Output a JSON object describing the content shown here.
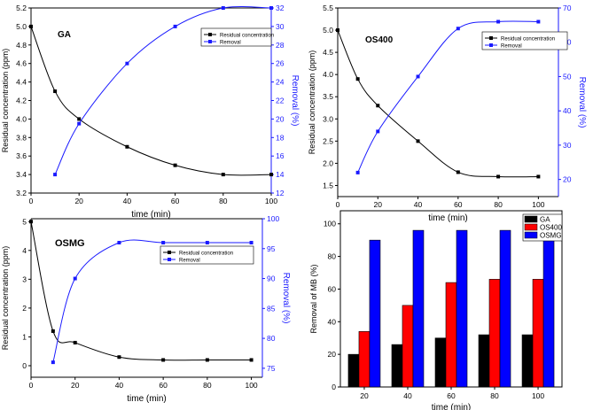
{
  "colors": {
    "residual": "#000000",
    "removal": "#1a1aff",
    "ga_bar": "#000000",
    "os400_bar": "#ff0000",
    "osmg_bar": "#0000ff"
  },
  "chart_data": [
    {
      "type": "line",
      "panel_label": "GA",
      "xlabel": "time (min)",
      "ylabel": "Residual concentration (ppm)",
      "y2label": "Removal (%)",
      "xlim": [
        0,
        100
      ],
      "xticks": [
        0,
        20,
        40,
        60,
        80,
        100
      ],
      "ylim": [
        3.2,
        5.2
      ],
      "yticks": [
        3.2,
        3.4,
        3.6,
        3.8,
        4.0,
        4.2,
        4.4,
        4.6,
        4.8,
        5.0,
        5.2
      ],
      "yticklabels": [
        "3.2",
        "3.4",
        "3.6",
        "3.8",
        "4.0",
        "4.2",
        "4.4",
        "4.6",
        "4.8",
        "5.0",
        "5.2"
      ],
      "y2lim": [
        12,
        32
      ],
      "y2ticks": [
        12,
        14,
        16,
        18,
        20,
        22,
        24,
        26,
        28,
        30,
        32
      ],
      "legend_position": "top-right",
      "series": [
        {
          "name": "Residual concentration",
          "axis": "left",
          "x": [
            0,
            10,
            20,
            40,
            60,
            80,
            100
          ],
          "values": [
            5.0,
            4.3,
            4.0,
            3.7,
            3.5,
            3.4,
            3.4
          ]
        },
        {
          "name": "Removal",
          "axis": "right",
          "x": [
            10,
            20,
            40,
            60,
            80,
            100
          ],
          "values": [
            14,
            19.5,
            26,
            30,
            32,
            32
          ]
        }
      ]
    },
    {
      "type": "line",
      "panel_label": "OS400",
      "xlabel": "time (min)",
      "ylabel": "Residual concentration (ppm)",
      "y2label": "Removal (%)",
      "xlim": [
        0,
        110
      ],
      "xticks": [
        0,
        20,
        40,
        60,
        80,
        100
      ],
      "ylim": [
        1.25,
        5.5
      ],
      "yticks": [
        1.5,
        2.0,
        2.5,
        3.0,
        3.5,
        4.0,
        4.5,
        5.0,
        5.5
      ],
      "yticklabels": [
        "1.5",
        "2.0",
        "2.5",
        "3.0",
        "3.5",
        "4.0",
        "4.5",
        "5.0",
        "5.5"
      ],
      "y2lim": [
        15,
        70
      ],
      "y2ticks": [
        20,
        30,
        40,
        50,
        60,
        70
      ],
      "legend_position": "top-right",
      "series": [
        {
          "name": "Residual concentration",
          "axis": "left",
          "x": [
            0,
            10,
            20,
            40,
            60,
            80,
            100
          ],
          "values": [
            5.0,
            3.9,
            3.3,
            2.5,
            1.8,
            1.7,
            1.7
          ]
        },
        {
          "name": "Removal",
          "axis": "right",
          "x": [
            10,
            20,
            40,
            60,
            80,
            100
          ],
          "values": [
            22,
            34,
            50,
            64,
            66,
            66
          ]
        }
      ]
    },
    {
      "type": "line",
      "panel_label": "OSMG",
      "xlabel": "time (min)",
      "ylabel": "Residual concentration (ppm)",
      "y2label": "Removal (%)",
      "xlim": [
        0,
        105
      ],
      "xticks": [
        0,
        20,
        40,
        60,
        80,
        100
      ],
      "ylim": [
        -0.4,
        5.1
      ],
      "yticks": [
        0,
        1,
        2,
        3,
        4,
        5
      ],
      "yticklabels": [
        "0",
        "1",
        "2",
        "3",
        "4",
        "5"
      ],
      "y2lim": [
        73.5,
        100
      ],
      "y2ticks": [
        75,
        80,
        85,
        90,
        95,
        100
      ],
      "legend_position": "top-right",
      "series": [
        {
          "name": "Residual concentration",
          "axis": "left",
          "x": [
            0,
            10,
            20,
            40,
            60,
            80,
            100
          ],
          "values": [
            5.0,
            1.2,
            0.8,
            0.3,
            0.2,
            0.2,
            0.2
          ]
        },
        {
          "name": "Removal",
          "axis": "right",
          "x": [
            10,
            20,
            40,
            60,
            80,
            100
          ],
          "values": [
            76,
            90,
            96,
            96,
            96,
            96
          ]
        }
      ]
    },
    {
      "type": "bar",
      "xlabel": "time (min)",
      "ylabel": "Removal of MB (%)",
      "categories": [
        "20",
        "40",
        "60",
        "80",
        "100"
      ],
      "ylim": [
        0,
        108
      ],
      "yticks": [
        0,
        20,
        40,
        60,
        80,
        100
      ],
      "legend_position": "top-right",
      "series": [
        {
          "name": "GA",
          "values": [
            20,
            26,
            30,
            32,
            32
          ]
        },
        {
          "name": "OS400",
          "values": [
            34,
            50,
            64,
            66,
            66
          ]
        },
        {
          "name": "OSMG",
          "values": [
            90,
            96,
            96,
            96,
            96
          ]
        }
      ]
    }
  ]
}
